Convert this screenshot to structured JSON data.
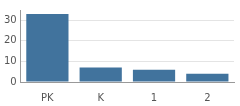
{
  "chart_data": {
    "type": "bar",
    "categories": [
      "PK",
      "K",
      "1",
      "2"
    ],
    "values": [
      33,
      7,
      6,
      4
    ],
    "color": "#41739d",
    "ylim": [
      0,
      35
    ],
    "yticks": [
      0,
      10,
      20,
      30
    ],
    "grid": true
  }
}
